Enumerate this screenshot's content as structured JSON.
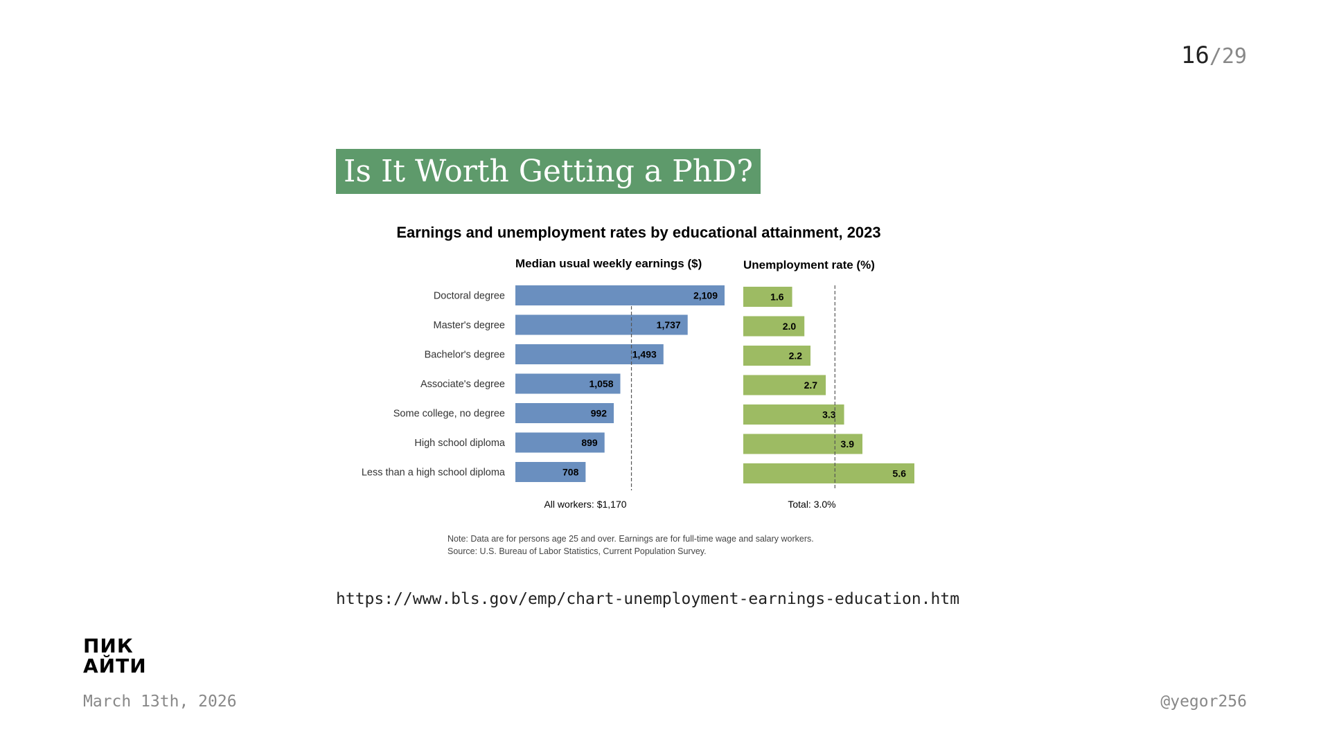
{
  "pager": {
    "current": "16",
    "total": "/29"
  },
  "slide": {
    "title": "Is It Worth Getting a PhD?",
    "url": "https://www.bls.gov/emp/chart-unemployment-earnings-education.htm"
  },
  "logo": {
    "line1": "ПИК",
    "line2": "АЙТИ"
  },
  "footer": {
    "date": "March 13th, 2026",
    "handle": "@yegor256"
  },
  "chart_data": {
    "type": "bar",
    "orientation": "horizontal",
    "title": "Earnings and unemployment rates by educational attainment, 2023",
    "categories": [
      "Doctoral degree",
      "Master's degree",
      "Bachelor's degree",
      "Associate's degree",
      "Some college, no degree",
      "High school diploma",
      "Less than a high school diploma"
    ],
    "panels": [
      {
        "title": "Median usual weekly earnings ($)",
        "values": [
          2109,
          1737,
          1493,
          1058,
          992,
          899,
          708
        ],
        "labels": [
          "2,109",
          "1,737",
          "1,493",
          "1,058",
          "992",
          "899",
          "708"
        ],
        "color": "#6a8fbf",
        "reference_value": 1170,
        "reference_label": "All workers: $1,170",
        "xlim": [
          0,
          2109
        ]
      },
      {
        "title": "Unemployment rate (%)",
        "values": [
          1.6,
          2.0,
          2.2,
          2.7,
          3.3,
          3.9,
          5.6
        ],
        "labels": [
          "1.6",
          "2.0",
          "2.2",
          "2.7",
          "3.3",
          "3.9",
          "5.6"
        ],
        "color": "#9dbb63",
        "reference_value": 3.0,
        "reference_label": "Total: 3.0%",
        "xlim": [
          0,
          5.6
        ]
      }
    ],
    "note": "Note: Data are for persons age 25 and over. Earnings are for full-time wage and salary workers.",
    "source": "Source: U.S. Bureau of Labor Statistics, Current Population Survey.",
    "grid": false,
    "legend": "none"
  }
}
